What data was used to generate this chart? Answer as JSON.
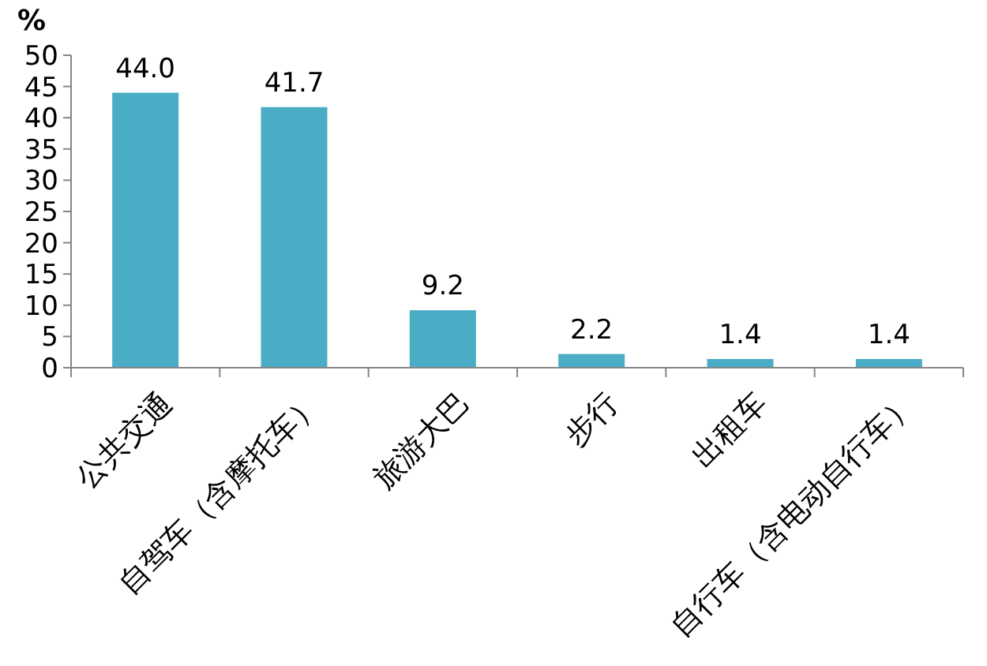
{
  "chart_data": {
    "type": "bar",
    "ylabel": "%",
    "categories": [
      "公共交通",
      "自驾车（含摩托车）",
      "旅游大巴",
      "步行",
      "出租车",
      "自行车（含电动自行车）"
    ],
    "values": [
      44.0,
      41.7,
      9.2,
      2.2,
      1.4,
      1.4
    ],
    "value_labels": [
      "44.0",
      "41.7",
      "9.2",
      "2.2",
      "1.4",
      "1.4"
    ],
    "color": "#4bacc6",
    "ylim": [
      0,
      50
    ],
    "yticks": [
      0,
      5,
      10,
      15,
      20,
      25,
      30,
      35,
      40,
      45,
      50
    ],
    "grid": false
  }
}
